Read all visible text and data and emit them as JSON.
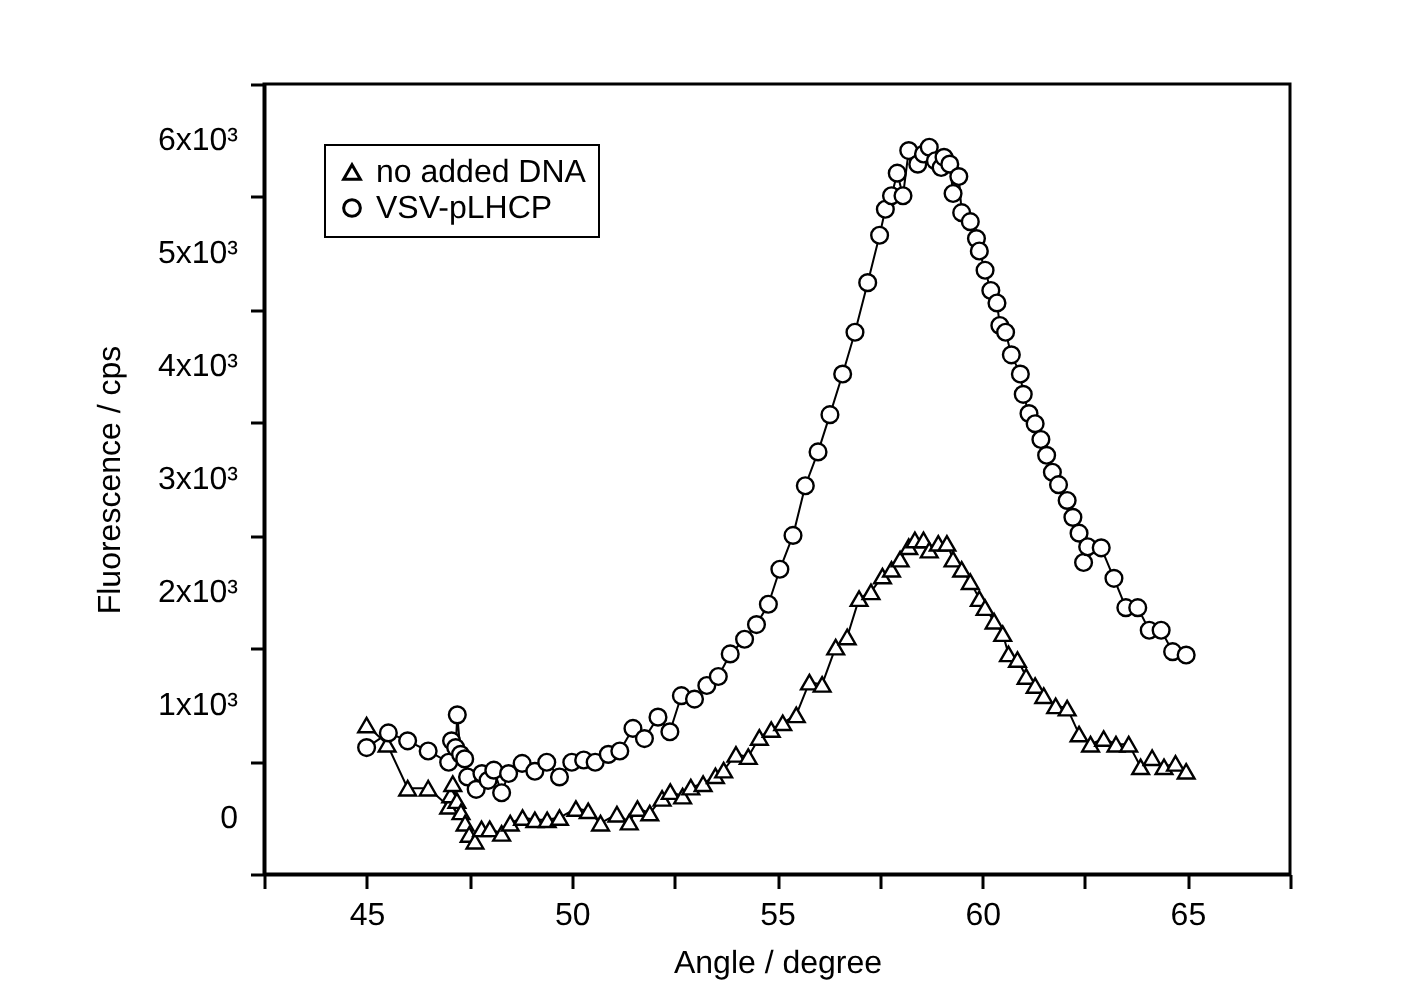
{
  "chart_data": {
    "type": "line",
    "xlabel": "Angle / degree",
    "ylabel": "Fluorescence / cps",
    "legend": "top left",
    "line_style": "solid",
    "grid": false,
    "xlim": [
      42.5,
      67.5
    ],
    "xticks": [
      {
        "value": 42.5,
        "label": null
      },
      45,
      {
        "value": 47.5,
        "label": null
      },
      50,
      {
        "value": 52.5,
        "label": null
      },
      55,
      {
        "value": 57.5,
        "label": null
      },
      60,
      {
        "value": 62.5,
        "label": null
      },
      65,
      {
        "value": 67.5,
        "label": null
      }
    ],
    "ylim": [
      -500,
      6500
    ],
    "yticks": [
      {
        "value": -500,
        "label": null
      },
      0,
      {
        "value": 500,
        "label": null
      },
      {
        "value": 1000,
        "label": "1x10³"
      },
      {
        "value": 1500,
        "label": null
      },
      {
        "value": 2000,
        "label": "2x10³"
      },
      {
        "value": 2500,
        "label": null
      },
      {
        "value": 3000,
        "label": "3x10³"
      },
      {
        "value": 3500,
        "label": null
      },
      {
        "value": 4000,
        "label": "4x10³"
      },
      {
        "value": 4500,
        "label": null
      },
      {
        "value": 5000,
        "label": "5x10³"
      },
      {
        "value": 5500,
        "label": null
      },
      {
        "value": 6000,
        "label": "6x10³"
      },
      {
        "value": 6500,
        "label": null
      }
    ],
    "series": [
      {
        "name": "no added DNA",
        "color": "#000000",
        "marker": "triangle",
        "x": [
          45,
          45.5,
          46,
          46.5,
          47,
          47.05,
          47.1,
          47.2,
          47.3,
          47.4,
          47.5,
          47.64,
          47.8,
          48,
          48.29,
          48.5,
          48.8,
          49.1,
          49.4,
          49.7,
          50.1,
          50.4,
          50.7,
          51.1,
          51.4,
          51.6,
          51.9,
          52.2,
          52.4,
          52.7,
          52.9,
          53.2,
          53.5,
          53.7,
          54,
          54.3,
          54.57,
          54.86,
          55.14,
          55.47,
          55.79,
          56.1,
          56.43,
          56.71,
          57,
          57.29,
          57.57,
          57.79,
          58,
          58.21,
          58.36,
          58.57,
          58.71,
          58.93,
          59.14,
          59.29,
          59.5,
          59.71,
          59.93,
          60.07,
          60.29,
          60.5,
          60.64,
          60.86,
          61.07,
          61.29,
          61.5,
          61.79,
          62.07,
          62.36,
          62.64,
          62.96,
          63.26,
          63.57,
          63.86,
          64.14,
          64.43,
          64.71,
          64.97
        ],
        "values": [
          820,
          650,
          260,
          260,
          100,
          200,
          300,
          150,
          50,
          -50,
          -150,
          -210,
          -100,
          -100,
          -140,
          -50,
          0,
          -20,
          -20,
          0,
          80,
          60,
          -50,
          30,
          -40,
          80,
          40,
          170,
          230,
          190,
          270,
          300,
          370,
          420,
          560,
          540,
          710,
          780,
          840,
          910,
          1200,
          1180,
          1510,
          1600,
          1940,
          2000,
          2140,
          2200,
          2290,
          2400,
          2460,
          2460,
          2370,
          2430,
          2430,
          2290,
          2200,
          2090,
          1940,
          1860,
          1740,
          1630,
          1450,
          1400,
          1250,
          1170,
          1080,
          990,
          970,
          740,
          650,
          700,
          650,
          650,
          450,
          530,
          450,
          480,
          410
        ]
      },
      {
        "name": "VSV-pLHCP",
        "color": "#000000",
        "marker": "circle",
        "x": [
          45,
          45.53,
          46,
          46.5,
          47,
          47.07,
          47.17,
          47.21,
          47.29,
          47.39,
          47.46,
          47.67,
          47.81,
          47.96,
          48.1,
          48.29,
          48.46,
          48.79,
          49.1,
          49.39,
          49.7,
          50,
          50.29,
          50.57,
          50.89,
          51.17,
          51.49,
          51.77,
          52.1,
          52.39,
          52.67,
          52.99,
          53.29,
          53.57,
          53.86,
          54.21,
          54.5,
          54.79,
          55.07,
          55.39,
          55.69,
          56,
          56.29,
          56.6,
          56.9,
          57.21,
          57.5,
          57.64,
          57.79,
          57.93,
          58.07,
          58.21,
          58.43,
          58.57,
          58.71,
          58.86,
          59,
          59.07,
          59.21,
          59.29,
          59.43,
          59.5,
          59.71,
          59.86,
          59.93,
          60.07,
          60.21,
          60.36,
          60.43,
          60.57,
          60.71,
          60.93,
          61,
          61.14,
          61.29,
          61.43,
          61.57,
          61.71,
          61.86,
          62.07,
          62.21,
          62.36,
          62.47,
          62.57,
          62.9,
          63.21,
          63.5,
          63.79,
          64.07,
          64.36,
          64.64,
          64.97
        ],
        "values": [
          620,
          750,
          680,
          590,
          490,
          680,
          620,
          910,
          560,
          520,
          360,
          250,
          390,
          330,
          420,
          220,
          390,
          480,
          410,
          490,
          360,
          490,
          510,
          490,
          560,
          590,
          790,
          700,
          890,
          760,
          1080,
          1050,
          1170,
          1250,
          1450,
          1580,
          1710,
          1890,
          2200,
          2500,
          2940,
          3240,
          3570,
          3930,
          4300,
          4740,
          5160,
          5390,
          5510,
          5710,
          5510,
          5910,
          5790,
          5880,
          5940,
          5820,
          5760,
          5850,
          5790,
          5530,
          5680,
          5360,
          5280,
          5130,
          5020,
          4850,
          4670,
          4560,
          4360,
          4300,
          4100,
          3930,
          3750,
          3580,
          3490,
          3350,
          3210,
          3060,
          2950,
          2810,
          2660,
          2520,
          2260,
          2400,
          2390,
          2120,
          1860,
          1860,
          1660,
          1660,
          1470,
          1440
        ]
      }
    ]
  }
}
